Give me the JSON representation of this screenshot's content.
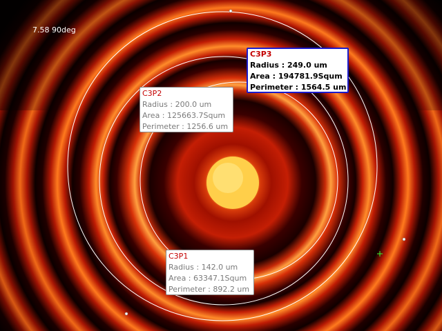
{
  "overlay": {
    "angle_label": "7.58 90deg"
  },
  "measurements": [
    {
      "title": "C3P3",
      "radius": "Radius : 249.0 um",
      "area": "Area : 194781.9Squm",
      "perimeter": "Perimeter : 1564.5 um",
      "selected": true
    },
    {
      "title": "C3P2",
      "radius": "Radius : 200.0 um",
      "area": "Area : 125663.7Squm",
      "perimeter": "Perimeter : 1256.6 um",
      "selected": false
    },
    {
      "title": "C3P1",
      "radius": "Radius : 142.0 um",
      "area": "Area : 63347.1Squm",
      "perimeter": "Perimeter : 892.2 um",
      "selected": false
    }
  ],
  "colors": {
    "fringe_bright": "#ff7a1a",
    "fringe_dark": "#1a0000",
    "center_spot": "#ffd24a",
    "selected_border": "#1a1acc",
    "title_red": "#c40000"
  }
}
